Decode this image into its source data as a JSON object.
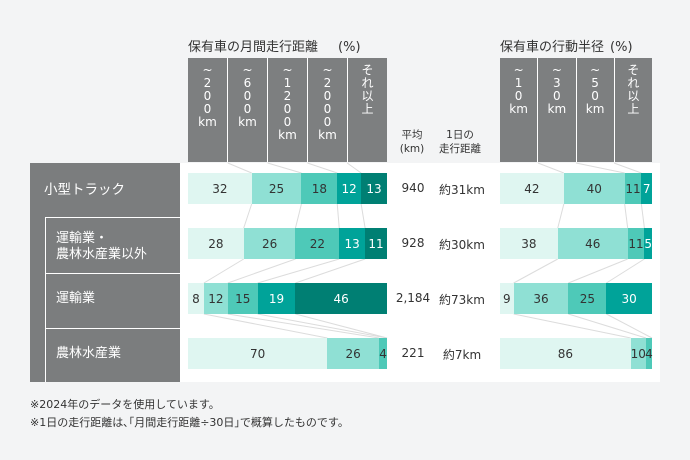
{
  "titles": {
    "mileage": "保有車の月間走行距離",
    "mileage_unit": "(%)",
    "radius": "保有車の行動半径",
    "radius_unit": "(%)"
  },
  "mileage_headers": [
    [
      "~",
      "2",
      "0",
      "0",
      "km"
    ],
    [
      "~",
      "6",
      "0",
      "0",
      "km"
    ],
    [
      "~",
      "1",
      "2",
      "0",
      "0",
      "km"
    ],
    [
      "~",
      "2",
      "0",
      "0",
      "0",
      "km"
    ],
    [
      "そ",
      "れ",
      "以",
      "上"
    ]
  ],
  "radius_headers": [
    [
      "~",
      "1",
      "0",
      "km"
    ],
    [
      "~",
      "3",
      "0",
      "km"
    ],
    [
      "~",
      "5",
      "0",
      "km"
    ],
    [
      "そ",
      "れ",
      "以",
      "上"
    ]
  ],
  "avg_header": [
    "平均",
    "(km)"
  ],
  "daily_header": [
    "1日の",
    "走行距離"
  ],
  "rows": [
    {
      "label": "小型トラック",
      "avg": "940",
      "daily": "約31km"
    },
    {
      "label": "運輸業・\n農林水産業以外",
      "label_lines": [
        "運輸業・",
        "農林水産業以外"
      ],
      "avg": "928",
      "daily": "約30km"
    },
    {
      "label": "運輸業",
      "avg": "2,184",
      "daily": "約73km"
    },
    {
      "label": "農林水産業",
      "avg": "221",
      "daily": "約7km"
    }
  ],
  "chart_data": [
    {
      "type": "bar",
      "stacked": true,
      "orientation": "horizontal",
      "title": "保有車の月間走行距離 (%)",
      "categories": [
        "小型トラック",
        "運輸業・農林水産業以外",
        "運輸業",
        "農林水産業"
      ],
      "series": [
        {
          "name": "~200km",
          "values": [
            32,
            28,
            8,
            70
          ]
        },
        {
          "name": "~600km",
          "values": [
            25,
            26,
            12,
            26
          ]
        },
        {
          "name": "~1200km",
          "values": [
            18,
            22,
            15,
            4
          ]
        },
        {
          "name": "~2000km",
          "values": [
            12,
            13,
            19,
            0
          ]
        },
        {
          "name": "それ以上",
          "values": [
            13,
            11,
            46,
            0
          ]
        }
      ]
    },
    {
      "type": "bar",
      "stacked": true,
      "orientation": "horizontal",
      "title": "保有車の行動半径 (%)",
      "categories": [
        "小型トラック",
        "運輸業・農林水産業以外",
        "運輸業",
        "農林水産業"
      ],
      "series": [
        {
          "name": "~10km",
          "values": [
            42,
            38,
            9,
            86
          ]
        },
        {
          "name": "~30km",
          "values": [
            40,
            46,
            36,
            10
          ]
        },
        {
          "name": "~50km",
          "values": [
            11,
            11,
            25,
            4
          ]
        },
        {
          "name": "それ以上",
          "values": [
            7,
            5,
            30,
            0
          ]
        }
      ]
    }
  ],
  "colors": [
    "#dff6f1",
    "#8fe0d4",
    "#4ec9b8",
    "#00a399",
    "#007f73"
  ],
  "notes": [
    "※2024年のデータを使用しています。",
    "※1日の走行距離は､｢月間走行距離÷30日｣で概算したものです。"
  ]
}
